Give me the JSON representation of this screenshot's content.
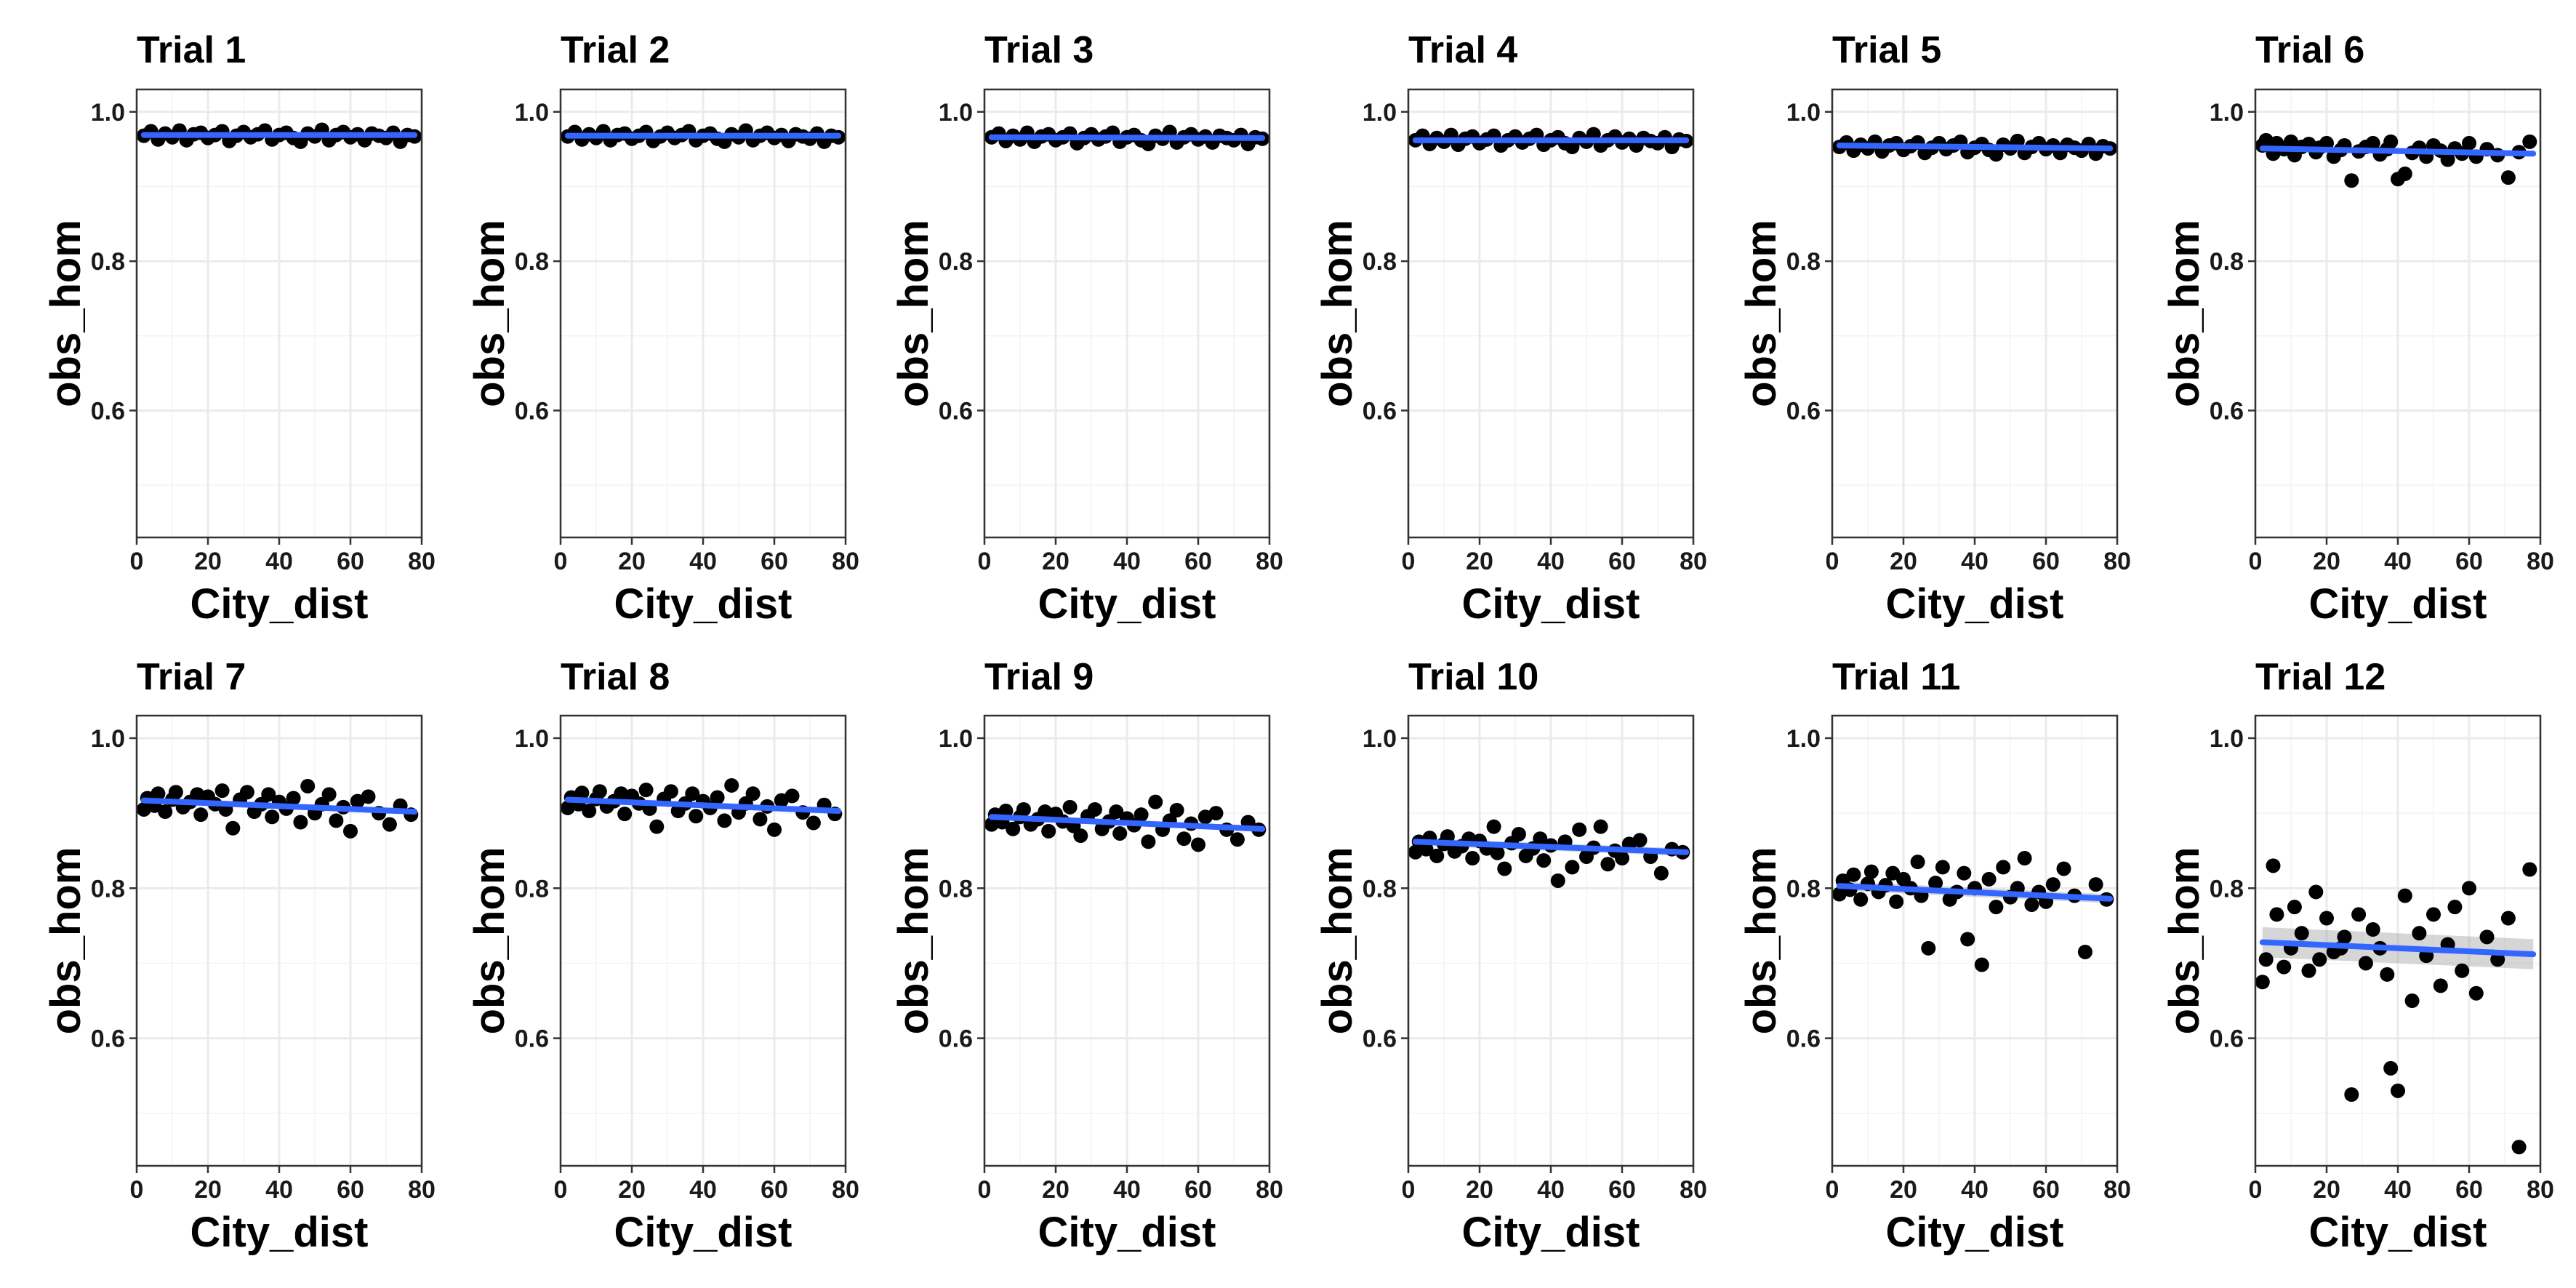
{
  "colors": {
    "points": "#000000",
    "fit_line": "#3366FF",
    "confidence_band": "#999999",
    "grid": "#EBEBEB",
    "border": "#333333"
  },
  "chart_data": [
    {
      "type": "scatter",
      "title": "Trial 1",
      "xlabel": "City_dist",
      "ylabel": "obs_hom",
      "xlim": [
        0,
        80
      ],
      "ylim": [
        0.43,
        1.03
      ],
      "xticks": [
        "0",
        "20",
        "40",
        "60",
        "80"
      ],
      "yticks": [
        "0.6",
        "0.8",
        "1.0"
      ],
      "grid": "on",
      "x": [
        2,
        4,
        6,
        8,
        10,
        12,
        14,
        16,
        18,
        20,
        22,
        24,
        26,
        28,
        30,
        32,
        34,
        36,
        38,
        40,
        42,
        44,
        46,
        48,
        50,
        52,
        54,
        56,
        58,
        60,
        62,
        64,
        66,
        68,
        70,
        72,
        74,
        76,
        78
      ],
      "y": [
        0.968,
        0.974,
        0.963,
        0.971,
        0.966,
        0.975,
        0.962,
        0.97,
        0.972,
        0.965,
        0.969,
        0.974,
        0.961,
        0.968,
        0.973,
        0.966,
        0.97,
        0.975,
        0.963,
        0.969,
        0.972,
        0.965,
        0.96,
        0.971,
        0.967,
        0.976,
        0.962,
        0.969,
        0.973,
        0.966,
        0.97,
        0.962,
        0.971,
        0.968,
        0.965,
        0.972,
        0.96,
        0.969,
        0.967
      ],
      "fit": {
        "x": [
          2,
          78
        ],
        "y": [
          0.969,
          0.969
        ]
      },
      "band": 0.002
    },
    {
      "type": "scatter",
      "title": "Trial 2",
      "xlabel": "City_dist",
      "ylabel": "obs_hom",
      "xlim": [
        0,
        80
      ],
      "ylim": [
        0.43,
        1.03
      ],
      "xticks": [
        "0",
        "20",
        "40",
        "60",
        "80"
      ],
      "yticks": [
        "0.6",
        "0.8",
        "1.0"
      ],
      "grid": "on",
      "x": [
        2,
        4,
        6,
        8,
        10,
        12,
        14,
        16,
        18,
        20,
        22,
        24,
        26,
        28,
        30,
        32,
        34,
        36,
        38,
        40,
        42,
        44,
        46,
        48,
        50,
        52,
        54,
        56,
        58,
        60,
        62,
        64,
        66,
        68,
        70,
        72,
        74,
        76,
        78
      ],
      "y": [
        0.967,
        0.973,
        0.963,
        0.97,
        0.965,
        0.974,
        0.962,
        0.969,
        0.971,
        0.964,
        0.968,
        0.973,
        0.961,
        0.967,
        0.972,
        0.965,
        0.969,
        0.974,
        0.962,
        0.968,
        0.971,
        0.964,
        0.96,
        0.97,
        0.966,
        0.975,
        0.962,
        0.968,
        0.972,
        0.965,
        0.969,
        0.961,
        0.97,
        0.967,
        0.964,
        0.971,
        0.96,
        0.968,
        0.966
      ],
      "fit": {
        "x": [
          2,
          78
        ],
        "y": [
          0.968,
          0.968
        ]
      },
      "band": 0.002
    },
    {
      "type": "scatter",
      "title": "Trial 3",
      "xlabel": "City_dist",
      "ylabel": "obs_hom",
      "xlim": [
        0,
        80
      ],
      "ylim": [
        0.43,
        1.03
      ],
      "xticks": [
        "0",
        "20",
        "40",
        "60",
        "80"
      ],
      "yticks": [
        "0.6",
        "0.8",
        "1.0"
      ],
      "grid": "on",
      "x": [
        2,
        4,
        6,
        8,
        10,
        12,
        14,
        16,
        18,
        20,
        22,
        24,
        26,
        28,
        30,
        32,
        34,
        36,
        38,
        40,
        42,
        44,
        46,
        48,
        50,
        52,
        54,
        56,
        58,
        60,
        62,
        64,
        66,
        68,
        70,
        72,
        74,
        76,
        78
      ],
      "y": [
        0.966,
        0.971,
        0.961,
        0.968,
        0.963,
        0.972,
        0.96,
        0.967,
        0.97,
        0.962,
        0.966,
        0.971,
        0.958,
        0.965,
        0.97,
        0.963,
        0.967,
        0.972,
        0.96,
        0.966,
        0.969,
        0.962,
        0.957,
        0.968,
        0.964,
        0.973,
        0.959,
        0.966,
        0.97,
        0.963,
        0.967,
        0.959,
        0.968,
        0.965,
        0.962,
        0.969,
        0.957,
        0.966,
        0.964
      ],
      "fit": {
        "x": [
          2,
          78
        ],
        "y": [
          0.966,
          0.965
        ]
      },
      "band": 0.002
    },
    {
      "type": "scatter",
      "title": "Trial 4",
      "xlabel": "City_dist",
      "ylabel": "obs_hom",
      "xlim": [
        0,
        80
      ],
      "ylim": [
        0.43,
        1.03
      ],
      "xticks": [
        "0",
        "20",
        "40",
        "60",
        "80"
      ],
      "yticks": [
        "0.6",
        "0.8",
        "1.0"
      ],
      "grid": "on",
      "x": [
        2,
        4,
        6,
        8,
        10,
        12,
        14,
        16,
        18,
        20,
        22,
        24,
        26,
        28,
        30,
        32,
        34,
        36,
        38,
        40,
        42,
        44,
        46,
        48,
        50,
        52,
        54,
        56,
        58,
        60,
        62,
        64,
        66,
        68,
        70,
        72,
        74,
        76,
        78
      ],
      "y": [
        0.962,
        0.968,
        0.957,
        0.965,
        0.96,
        0.969,
        0.956,
        0.964,
        0.967,
        0.958,
        0.963,
        0.968,
        0.955,
        0.962,
        0.967,
        0.959,
        0.964,
        0.969,
        0.956,
        0.962,
        0.966,
        0.958,
        0.953,
        0.965,
        0.96,
        0.97,
        0.955,
        0.962,
        0.967,
        0.959,
        0.964,
        0.955,
        0.965,
        0.961,
        0.958,
        0.966,
        0.953,
        0.963,
        0.961
      ],
      "fit": {
        "x": [
          2,
          78
        ],
        "y": [
          0.962,
          0.962
        ]
      },
      "band": 0.002
    },
    {
      "type": "scatter",
      "title": "Trial 5",
      "xlabel": "City_dist",
      "ylabel": "obs_hom",
      "xlim": [
        0,
        80
      ],
      "ylim": [
        0.43,
        1.03
      ],
      "xticks": [
        "0",
        "20",
        "40",
        "60",
        "80"
      ],
      "yticks": [
        "0.6",
        "0.8",
        "1.0"
      ],
      "grid": "on",
      "x": [
        2,
        4,
        6,
        8,
        10,
        12,
        14,
        16,
        18,
        20,
        22,
        24,
        26,
        28,
        30,
        32,
        34,
        36,
        38,
        40,
        42,
        44,
        46,
        48,
        50,
        52,
        54,
        56,
        58,
        60,
        62,
        64,
        66,
        68,
        70,
        72,
        74,
        76,
        78
      ],
      "y": [
        0.953,
        0.959,
        0.948,
        0.956,
        0.951,
        0.96,
        0.947,
        0.955,
        0.958,
        0.949,
        0.954,
        0.959,
        0.945,
        0.952,
        0.958,
        0.95,
        0.955,
        0.96,
        0.946,
        0.952,
        0.957,
        0.949,
        0.943,
        0.956,
        0.951,
        0.961,
        0.945,
        0.953,
        0.958,
        0.95,
        0.955,
        0.945,
        0.956,
        0.952,
        0.948,
        0.957,
        0.944,
        0.954,
        0.951
      ],
      "fit": {
        "x": [
          2,
          78
        ],
        "y": [
          0.955,
          0.951
        ]
      },
      "band": 0.003
    },
    {
      "type": "scatter",
      "title": "Trial 6",
      "xlabel": "City_dist",
      "ylabel": "obs_hom",
      "xlim": [
        0,
        80
      ],
      "ylim": [
        0.43,
        1.03
      ],
      "xticks": [
        "0",
        "20",
        "40",
        "60",
        "80"
      ],
      "yticks": [
        "0.6",
        "0.8",
        "1.0"
      ],
      "grid": "on",
      "x": [
        2,
        3,
        5,
        6,
        8,
        10,
        11,
        13,
        15,
        17,
        18,
        20,
        22,
        24,
        25,
        27,
        29,
        31,
        33,
        35,
        37,
        38,
        40,
        42,
        44,
        46,
        48,
        50,
        52,
        54,
        56,
        58,
        60,
        62,
        65,
        68,
        71,
        74,
        77
      ],
      "y": [
        0.955,
        0.962,
        0.944,
        0.958,
        0.95,
        0.96,
        0.942,
        0.953,
        0.957,
        0.946,
        0.952,
        0.958,
        0.94,
        0.949,
        0.955,
        0.908,
        0.947,
        0.953,
        0.958,
        0.943,
        0.95,
        0.96,
        0.91,
        0.917,
        0.945,
        0.952,
        0.94,
        0.955,
        0.948,
        0.936,
        0.951,
        0.944,
        0.958,
        0.94,
        0.95,
        0.942,
        0.912,
        0.946,
        0.96
      ],
      "fit": {
        "x": [
          2,
          78
        ],
        "y": [
          0.951,
          0.944
        ]
      },
      "band": 0.004
    },
    {
      "type": "scatter",
      "title": "Trial 7",
      "xlabel": "City_dist",
      "ylabel": "obs_hom",
      "xlim": [
        0,
        80
      ],
      "ylim": [
        0.43,
        1.03
      ],
      "xticks": [
        "0",
        "20",
        "40",
        "60",
        "80"
      ],
      "yticks": [
        "0.6",
        "0.8",
        "1.0"
      ],
      "grid": "on",
      "x": [
        2,
        3,
        5,
        6,
        8,
        10,
        11,
        13,
        15,
        17,
        18,
        20,
        22,
        24,
        25,
        27,
        29,
        31,
        33,
        35,
        37,
        38,
        40,
        42,
        44,
        46,
        48,
        50,
        52,
        54,
        56,
        58,
        60,
        62,
        65,
        68,
        71,
        74,
        77
      ],
      "y": [
        0.905,
        0.92,
        0.91,
        0.926,
        0.902,
        0.918,
        0.928,
        0.908,
        0.915,
        0.925,
        0.898,
        0.922,
        0.912,
        0.93,
        0.905,
        0.88,
        0.918,
        0.928,
        0.902,
        0.912,
        0.925,
        0.895,
        0.915,
        0.906,
        0.92,
        0.888,
        0.936,
        0.9,
        0.912,
        0.925,
        0.89,
        0.908,
        0.876,
        0.916,
        0.922,
        0.9,
        0.885,
        0.91,
        0.898
      ],
      "fit": {
        "x": [
          2,
          78
        ],
        "y": [
          0.917,
          0.902
        ]
      },
      "band": 0.004
    },
    {
      "type": "scatter",
      "title": "Trial 8",
      "xlabel": "City_dist",
      "ylabel": "obs_hom",
      "xlim": [
        0,
        80
      ],
      "ylim": [
        0.43,
        1.03
      ],
      "xticks": [
        "0",
        "20",
        "40",
        "60",
        "80"
      ],
      "yticks": [
        "0.6",
        "0.8",
        "1.0"
      ],
      "grid": "on",
      "x": [
        2,
        3,
        5,
        6,
        8,
        10,
        11,
        13,
        15,
        17,
        18,
        20,
        22,
        24,
        25,
        27,
        29,
        31,
        33,
        35,
        37,
        38,
        40,
        42,
        44,
        46,
        48,
        50,
        52,
        54,
        56,
        58,
        60,
        62,
        65,
        68,
        71,
        74,
        77
      ],
      "y": [
        0.907,
        0.921,
        0.912,
        0.927,
        0.903,
        0.919,
        0.929,
        0.909,
        0.916,
        0.926,
        0.899,
        0.923,
        0.913,
        0.931,
        0.906,
        0.882,
        0.919,
        0.929,
        0.903,
        0.913,
        0.926,
        0.896,
        0.916,
        0.907,
        0.921,
        0.89,
        0.937,
        0.901,
        0.913,
        0.926,
        0.892,
        0.909,
        0.878,
        0.917,
        0.923,
        0.901,
        0.887,
        0.911,
        0.899
      ],
      "fit": {
        "x": [
          2,
          78
        ],
        "y": [
          0.918,
          0.903
        ]
      },
      "band": 0.004
    },
    {
      "type": "scatter",
      "title": "Trial 9",
      "xlabel": "City_dist",
      "ylabel": "obs_hom",
      "xlim": [
        0,
        80
      ],
      "ylim": [
        0.43,
        1.03
      ],
      "xticks": [
        "0",
        "20",
        "40",
        "60",
        "80"
      ],
      "yticks": [
        "0.6",
        "0.8",
        "1.0"
      ],
      "grid": "on",
      "x": [
        2,
        3,
        5,
        6,
        8,
        10,
        11,
        13,
        15,
        17,
        18,
        20,
        22,
        24,
        25,
        27,
        29,
        31,
        33,
        35,
        37,
        38,
        40,
        42,
        44,
        46,
        48,
        50,
        52,
        54,
        56,
        58,
        60,
        62,
        65,
        68,
        71,
        74,
        77
      ],
      "y": [
        0.885,
        0.898,
        0.888,
        0.903,
        0.879,
        0.895,
        0.905,
        0.885,
        0.892,
        0.902,
        0.876,
        0.899,
        0.889,
        0.908,
        0.883,
        0.87,
        0.896,
        0.905,
        0.879,
        0.889,
        0.902,
        0.873,
        0.893,
        0.884,
        0.898,
        0.862,
        0.915,
        0.878,
        0.89,
        0.904,
        0.866,
        0.886,
        0.858,
        0.895,
        0.9,
        0.878,
        0.865,
        0.888,
        0.878
      ],
      "fit": {
        "x": [
          2,
          78
        ],
        "y": [
          0.895,
          0.879
        ]
      },
      "band": 0.004
    },
    {
      "type": "scatter",
      "title": "Trial 10",
      "xlabel": "City_dist",
      "ylabel": "obs_hom",
      "xlim": [
        0,
        80
      ],
      "ylim": [
        0.43,
        1.03
      ],
      "xticks": [
        "0",
        "20",
        "40",
        "60",
        "80"
      ],
      "yticks": [
        "0.6",
        "0.8",
        "1.0"
      ],
      "grid": "on",
      "x": [
        2,
        3,
        5,
        6,
        8,
        10,
        11,
        13,
        15,
        17,
        18,
        20,
        22,
        24,
        25,
        27,
        29,
        31,
        33,
        35,
        37,
        38,
        40,
        42,
        44,
        46,
        48,
        50,
        52,
        54,
        56,
        58,
        60,
        62,
        65,
        68,
        71,
        74,
        77
      ],
      "y": [
        0.848,
        0.862,
        0.852,
        0.867,
        0.843,
        0.859,
        0.869,
        0.849,
        0.856,
        0.866,
        0.84,
        0.863,
        0.853,
        0.882,
        0.847,
        0.826,
        0.86,
        0.872,
        0.843,
        0.853,
        0.866,
        0.837,
        0.857,
        0.81,
        0.862,
        0.828,
        0.878,
        0.842,
        0.854,
        0.882,
        0.832,
        0.85,
        0.84,
        0.859,
        0.864,
        0.842,
        0.82,
        0.852,
        0.848
      ],
      "fit": {
        "x": [
          2,
          78
        ],
        "y": [
          0.862,
          0.848
        ]
      },
      "band": 0.005
    },
    {
      "type": "scatter",
      "title": "Trial 11",
      "xlabel": "City_dist",
      "ylabel": "obs_hom",
      "xlim": [
        0,
        80
      ],
      "ylim": [
        0.43,
        1.03
      ],
      "xticks": [
        "0",
        "20",
        "40",
        "60",
        "80"
      ],
      "yticks": [
        "0.6",
        "0.8",
        "1.0"
      ],
      "grid": "on",
      "x": [
        2,
        3,
        5,
        6,
        8,
        10,
        11,
        13,
        15,
        17,
        18,
        20,
        22,
        24,
        25,
        27,
        29,
        31,
        33,
        35,
        37,
        38,
        40,
        42,
        44,
        46,
        48,
        50,
        52,
        54,
        56,
        58,
        60,
        62,
        65,
        68,
        71,
        74,
        77
      ],
      "y": [
        0.792,
        0.81,
        0.798,
        0.818,
        0.785,
        0.806,
        0.822,
        0.795,
        0.804,
        0.82,
        0.782,
        0.812,
        0.8,
        0.835,
        0.79,
        0.72,
        0.807,
        0.828,
        0.785,
        0.795,
        0.82,
        0.732,
        0.8,
        0.698,
        0.812,
        0.775,
        0.828,
        0.788,
        0.8,
        0.84,
        0.778,
        0.795,
        0.782,
        0.805,
        0.826,
        0.79,
        0.715,
        0.805,
        0.785
      ],
      "fit": {
        "x": [
          2,
          78
        ],
        "y": [
          0.803,
          0.786
        ]
      },
      "band": 0.006
    },
    {
      "type": "scatter",
      "title": "Trial 12",
      "xlabel": "City_dist",
      "ylabel": "obs_hom",
      "xlim": [
        0,
        80
      ],
      "ylim": [
        0.43,
        1.03
      ],
      "xticks": [
        "0",
        "20",
        "40",
        "60",
        "80"
      ],
      "yticks": [
        "0.6",
        "0.8",
        "1.0"
      ],
      "grid": "on",
      "x": [
        2,
        3,
        5,
        6,
        8,
        10,
        11,
        13,
        15,
        17,
        18,
        20,
        22,
        24,
        25,
        27,
        29,
        31,
        33,
        35,
        37,
        38,
        40,
        42,
        44,
        46,
        48,
        50,
        52,
        54,
        56,
        58,
        60,
        62,
        65,
        68,
        71,
        74,
        77
      ],
      "y": [
        0.675,
        0.705,
        0.83,
        0.765,
        0.695,
        0.72,
        0.775,
        0.74,
        0.69,
        0.795,
        0.705,
        0.76,
        0.715,
        0.72,
        0.735,
        0.525,
        0.765,
        0.7,
        0.745,
        0.72,
        0.685,
        0.56,
        0.53,
        0.79,
        0.65,
        0.74,
        0.71,
        0.765,
        0.67,
        0.725,
        0.775,
        0.69,
        0.8,
        0.66,
        0.735,
        0.705,
        0.76,
        0.455,
        0.825
      ],
      "fit": {
        "x": [
          2,
          78
        ],
        "y": [
          0.728,
          0.712
        ]
      },
      "band": 0.02
    }
  ]
}
